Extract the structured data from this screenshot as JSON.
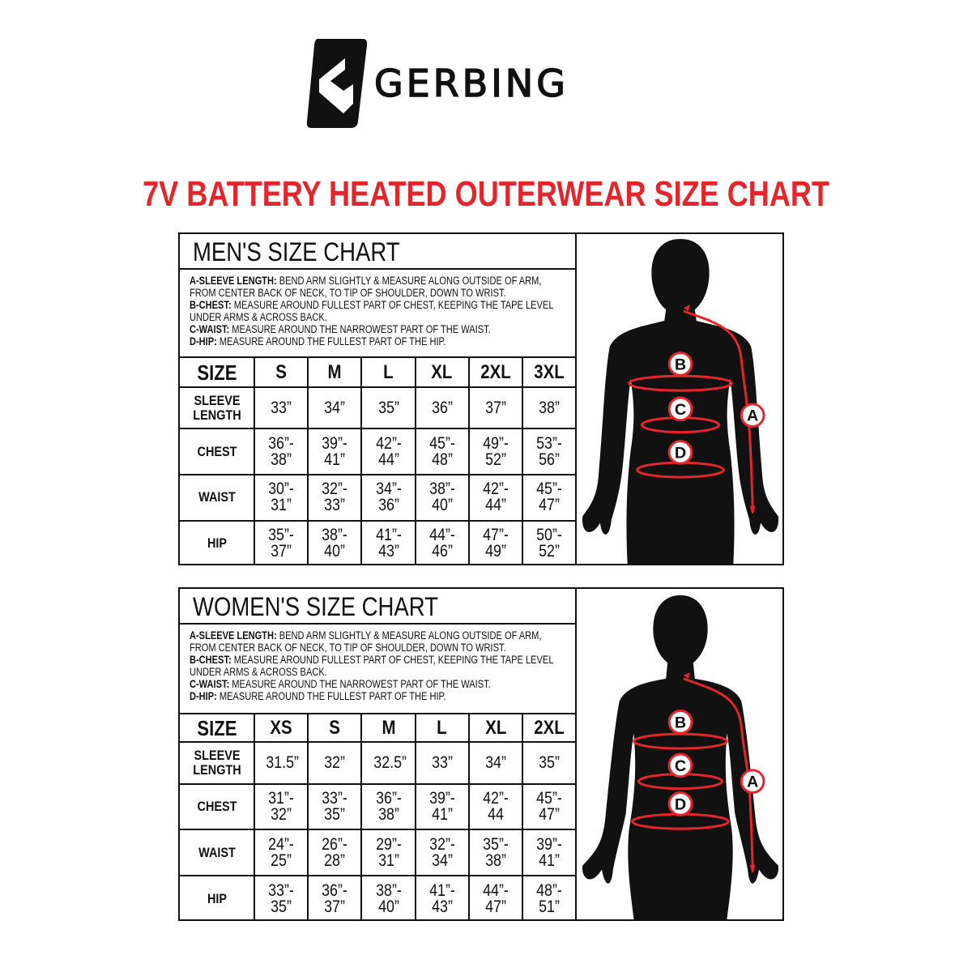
{
  "brand": {
    "name": "GERBING",
    "logo_icon": "gerbing-g-mark"
  },
  "title": "7V BATTERY HEATED OUTERWEAR SIZE CHART",
  "colors": {
    "accent": "#e3262b",
    "text": "#111111"
  },
  "instructions": [
    {
      "label": "A-SLEEVE LENGTH:",
      "text": " BEND ARM SLIGHTLY & MEASURE ALONG OUTSIDE OF ARM, FROM CENTER BACK OF NECK, TO TIP OF SHOULDER, DOWN TO WRIST."
    },
    {
      "label": "B-CHEST:",
      "text": " MEASURE AROUND FULLEST PART OF CHEST, KEEPING THE TAPE LEVEL UNDER ARMS & ACROSS BACK."
    },
    {
      "label": "C-WAIST:",
      "text": " MEASURE AROUND THE NARROWEST PART OF THE WAIST."
    },
    {
      "label": "D-HIP:",
      "text": " MEASURE AROUND THE FULLEST PART OF THE HIP."
    }
  ],
  "figure_labels": [
    "A",
    "B",
    "C",
    "D"
  ],
  "mens": {
    "title": "MEN'S SIZE CHART",
    "header": [
      "SIZE",
      "S",
      "M",
      "L",
      "XL",
      "2XL",
      "3XL"
    ],
    "rows": [
      {
        "label": "SLEEVE LENGTH",
        "values": [
          "33”",
          "34”",
          "35”",
          "36”",
          "37”",
          "38”"
        ]
      },
      {
        "label": "CHEST",
        "values": [
          "36”- 38”",
          "39”- 41”",
          "42”- 44”",
          "45”- 48”",
          "49”- 52”",
          "53”- 56”"
        ]
      },
      {
        "label": "WAIST",
        "values": [
          "30”- 31”",
          "32”- 33”",
          "34”- 36”",
          "38”- 40”",
          "42”- 44”",
          "45”- 47”"
        ]
      },
      {
        "label": "HIP",
        "values": [
          "35”- 37”",
          "38”- 40”",
          "41”- 43”",
          "44”- 46”",
          "47”- 49”",
          "50”- 52”"
        ]
      }
    ]
  },
  "womens": {
    "title": "WOMEN'S SIZE CHART",
    "header": [
      "SIZE",
      "XS",
      "S",
      "M",
      "L",
      "XL",
      "2XL"
    ],
    "rows": [
      {
        "label": "SLEEVE LENGTH",
        "values": [
          "31.5”",
          "32”",
          "32.5”",
          "33”",
          "34”",
          "35”"
        ]
      },
      {
        "label": "CHEST",
        "values": [
          "31”- 32”",
          "33”- 35”",
          "36”- 38”",
          "39”- 41”",
          "42”- 44",
          "45”- 47”"
        ]
      },
      {
        "label": "WAIST",
        "values": [
          "24”- 25”",
          "26”- 28”",
          "29”- 31”",
          "32”- 34”",
          "35”- 38”",
          "39”- 41”"
        ]
      },
      {
        "label": "HIP",
        "values": [
          "33”- 35”",
          "36”- 37”",
          "38”- 40”",
          "41”- 43”",
          "44”- 47”",
          "48”- 51”"
        ]
      }
    ]
  }
}
